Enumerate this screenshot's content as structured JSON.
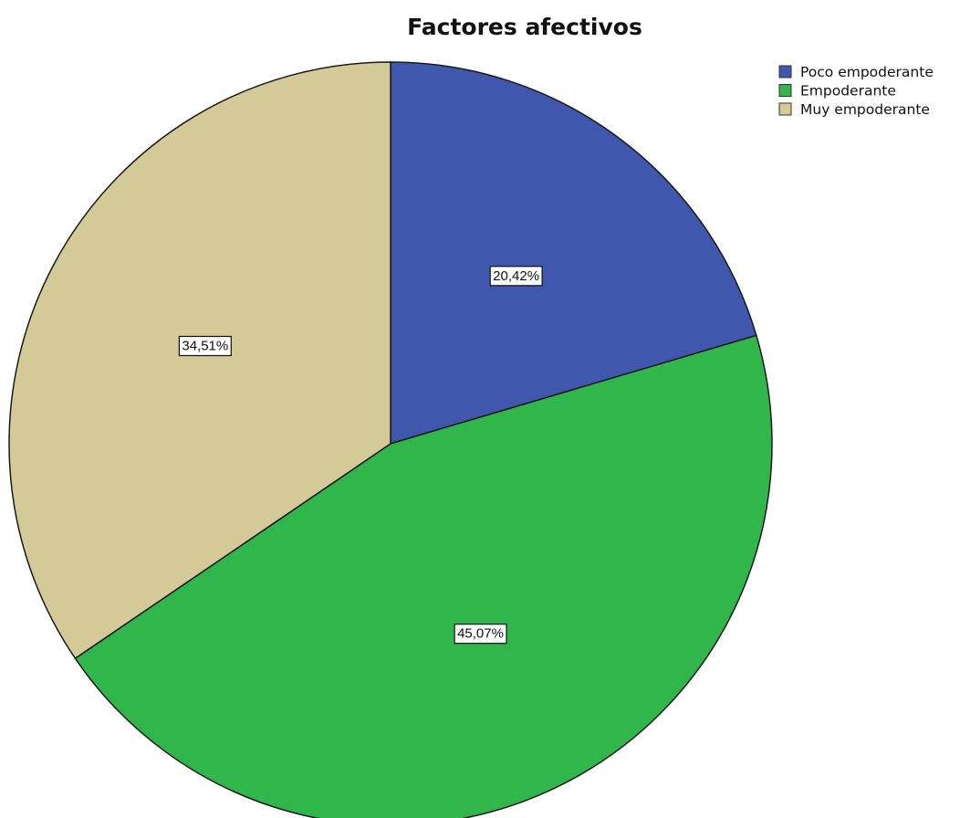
{
  "chart_data": {
    "type": "pie",
    "title": "Factores afectivos",
    "categories": [
      "Poco empoderante",
      "Empoderante",
      "Muy empoderante"
    ],
    "values": [
      20.42,
      45.07,
      34.51
    ],
    "data_labels": [
      "20,42%",
      "45,07%",
      "34,51%"
    ],
    "colors": [
      "#3f57ad",
      "#30b64a",
      "#d4ca97"
    ],
    "start_angle_deg": 0,
    "direction": "clockwise",
    "legend_position": "top-right"
  }
}
